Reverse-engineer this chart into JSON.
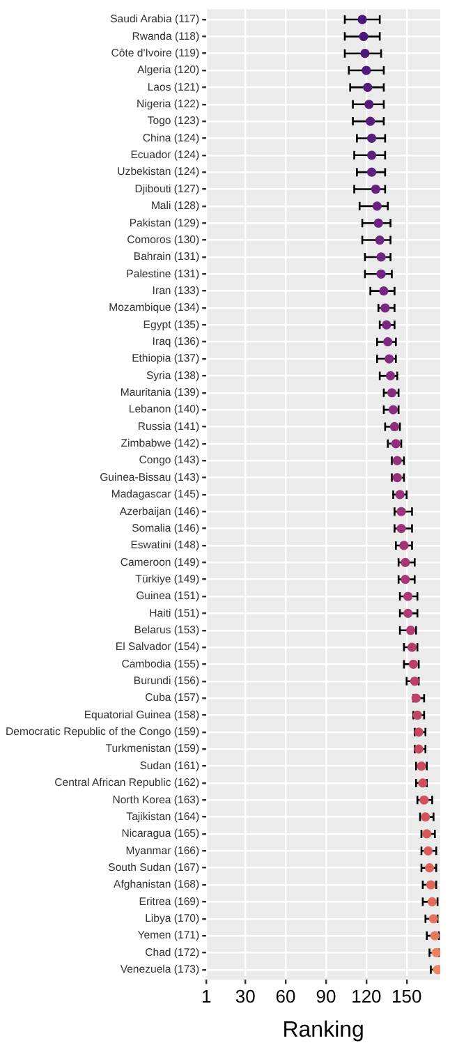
{
  "chart_data": {
    "type": "scatter",
    "orientation": "horizontal",
    "xlabel": "Ranking",
    "marker": "circle",
    "grid": true,
    "legend": false,
    "categories": [
      "Saudi Arabia (117)",
      "Rwanda (118)",
      "Côte d'Ivoire (119)",
      "Algeria (120)",
      "Laos (121)",
      "Nigeria (122)",
      "Togo (123)",
      "China (124)",
      "Ecuador (124)",
      "Uzbekistan (124)",
      "Djibouti (127)",
      "Mali (128)",
      "Pakistan (129)",
      "Comoros (130)",
      "Bahrain (131)",
      "Palestine (131)",
      "Iran (133)",
      "Mozambique (134)",
      "Egypt (135)",
      "Iraq (136)",
      "Ethiopia (137)",
      "Syria (138)",
      "Mauritania (139)",
      "Lebanon (140)",
      "Russia (141)",
      "Zimbabwe (142)",
      "Congo (143)",
      "Guinea-Bissau (143)",
      "Madagascar (145)",
      "Azerbaijan (146)",
      "Somalia (146)",
      "Eswatini (148)",
      "Cameroon (149)",
      "Türkiye (149)",
      "Guinea (151)",
      "Haiti (151)",
      "Belarus (153)",
      "El Salvador (154)",
      "Cambodia (155)",
      "Burundi (156)",
      "Cuba (157)",
      "Equatorial Guinea (158)",
      "Democratic Republic of the Congo (159)",
      "Turkmenistan (159)",
      "Sudan (161)",
      "Central African Republic (162)",
      "North Korea (163)",
      "Tajikistan (164)",
      "Nicaragua (165)",
      "Myanmar (166)",
      "South Sudan (167)",
      "Afghanistan (168)",
      "Eritrea (169)",
      "Libya (170)",
      "Yemen (171)",
      "Chad (172)",
      "Venezuela (173)"
    ],
    "values": [
      117,
      118,
      119,
      120,
      121,
      122,
      123,
      124,
      124,
      124,
      127,
      128,
      129,
      130,
      131,
      131,
      133,
      134,
      135,
      136,
      137,
      138,
      139,
      140,
      141,
      142,
      143,
      143,
      145,
      146,
      146,
      148,
      149,
      149,
      151,
      151,
      153,
      154,
      155,
      156,
      157,
      158,
      159,
      159,
      161,
      162,
      163,
      164,
      165,
      166,
      167,
      168,
      169,
      170,
      171,
      172,
      173
    ],
    "errors": [
      [
        104,
        130
      ],
      [
        104,
        130
      ],
      [
        104,
        131
      ],
      [
        107,
        133
      ],
      [
        108,
        133
      ],
      [
        110,
        133
      ],
      [
        110,
        133
      ],
      [
        113,
        134
      ],
      [
        111,
        134
      ],
      [
        113,
        134
      ],
      [
        111,
        134
      ],
      [
        115,
        136
      ],
      [
        117,
        138
      ],
      [
        117,
        138
      ],
      [
        119,
        138
      ],
      [
        119,
        139
      ],
      [
        123,
        141
      ],
      [
        129,
        141
      ],
      [
        130,
        141
      ],
      [
        128,
        142
      ],
      [
        128,
        142
      ],
      [
        130,
        143
      ],
      [
        133,
        144
      ],
      [
        133,
        144
      ],
      [
        134,
        145
      ],
      [
        136,
        146
      ],
      [
        139,
        148
      ],
      [
        139,
        148
      ],
      [
        140,
        150
      ],
      [
        141,
        154
      ],
      [
        141,
        154
      ],
      [
        142,
        154
      ],
      [
        144,
        156
      ],
      [
        144,
        156
      ],
      [
        145,
        158
      ],
      [
        145,
        158
      ],
      [
        145,
        157
      ],
      [
        148,
        158
      ],
      [
        148,
        159
      ],
      [
        150,
        159
      ],
      [
        155,
        163
      ],
      [
        155,
        163
      ],
      [
        156,
        164
      ],
      [
        156,
        164
      ],
      [
        157,
        165
      ],
      [
        157,
        165
      ],
      [
        158,
        169
      ],
      [
        160,
        170
      ],
      [
        161,
        171
      ],
      [
        161,
        172
      ],
      [
        161,
        172
      ],
      [
        162,
        172
      ],
      [
        162,
        173
      ],
      [
        164,
        173
      ],
      [
        165,
        174
      ],
      [
        167,
        174
      ],
      [
        168,
        174
      ]
    ],
    "colors": [
      "#4b1877",
      "#4c1878",
      "#4e1979",
      "#501a7a",
      "#521b7b",
      "#551c7c",
      "#581d7d",
      "#5b1e7e",
      "#5e1f7f",
      "#612080",
      "#642180",
      "#672281",
      "#6a2381",
      "#6d2482",
      "#702582",
      "#732582",
      "#762682",
      "#792782",
      "#7c2882",
      "#7f2982",
      "#822a81",
      "#852b81",
      "#882c80",
      "#8b2d80",
      "#8e2e7f",
      "#912f7e",
      "#94307d",
      "#97317c",
      "#9a327b",
      "#9d337a",
      "#a03479",
      "#a33577",
      "#a63676",
      "#a93874",
      "#ac3973",
      "#af3a71",
      "#b23b6f",
      "#b53c6d",
      "#b83e6b",
      "#bb4069",
      "#be4267",
      "#c14465",
      "#c44663",
      "#c74861",
      "#ca4b5f",
      "#cd4e5d",
      "#d0515b",
      "#d3555a",
      "#d65958",
      "#d95d58",
      "#dc6258",
      "#df6759",
      "#e26c5a",
      "#e5725c",
      "#e8785e",
      "#eb7f61",
      "#ee8664"
    ],
    "xlim": [
      1,
      175
    ],
    "xticks": [
      1,
      30,
      60,
      90,
      120,
      150
    ]
  }
}
